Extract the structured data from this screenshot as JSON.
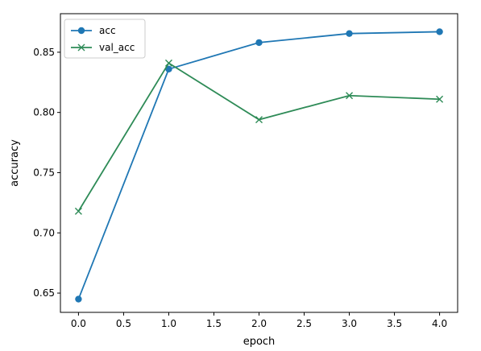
{
  "chart_data": {
    "type": "line",
    "title": "",
    "xlabel": "epoch",
    "ylabel": "accuracy",
    "x": [
      0,
      1,
      2,
      3,
      4
    ],
    "xlim": [
      -0.2,
      4.2
    ],
    "ylim": [
      0.634,
      0.882
    ],
    "xticks": [
      0.0,
      0.5,
      1.0,
      1.5,
      2.0,
      2.5,
      3.0,
      3.5,
      4.0
    ],
    "xtick_labels": [
      "0.0",
      "0.5",
      "1.0",
      "1.5",
      "2.0",
      "2.5",
      "3.0",
      "3.5",
      "4.0"
    ],
    "yticks": [
      0.65,
      0.7,
      0.75,
      0.8,
      0.85
    ],
    "ytick_labels": [
      "0.65",
      "0.70",
      "0.75",
      "0.80",
      "0.85"
    ],
    "grid": false,
    "legend_position": "top-left",
    "series": [
      {
        "name": "acc",
        "values": [
          0.645,
          0.836,
          0.858,
          0.8655,
          0.867
        ],
        "color": "#1f77b4",
        "marker": "circle"
      },
      {
        "name": "val_acc",
        "values": [
          0.718,
          0.841,
          0.794,
          0.814,
          0.811
        ],
        "color": "#2e8b57",
        "marker": "x"
      }
    ]
  }
}
